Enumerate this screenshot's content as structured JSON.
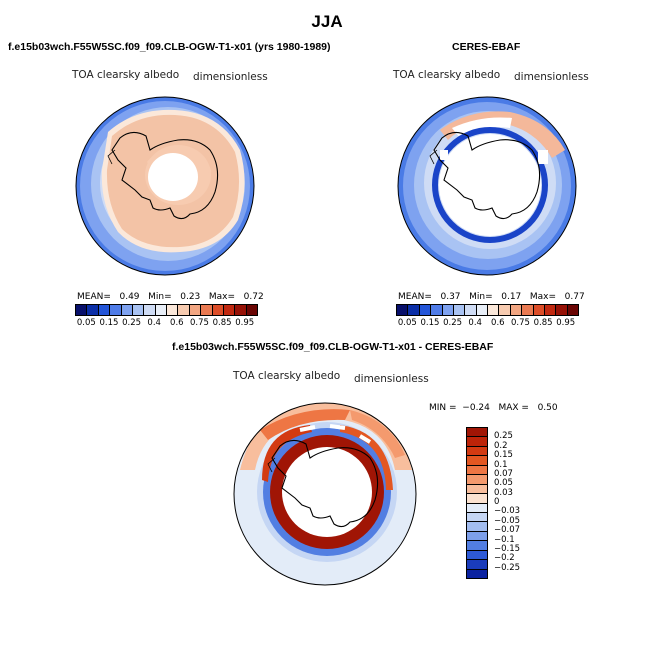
{
  "season": "JJA",
  "panels": [
    {
      "title": "f.e15b03wch.F55W5SC.f09_f09.CLB-OGW-T1-x01 (yrs 1980-1989)",
      "variable": "TOA clearsky albedo",
      "units": "dimensionless",
      "stats": {
        "mean_label": "MEAN=",
        "mean": "0.49",
        "min_label": "Min=",
        "min": "0.23",
        "max_label": "Max=",
        "max": "0.72"
      }
    },
    {
      "title": "CERES-EBAF",
      "variable": "TOA clearsky albedo",
      "units": "dimensionless",
      "stats": {
        "mean_label": "MEAN=",
        "mean": "0.37",
        "min_label": "Min=",
        "min": "0.17",
        "max_label": "Max=",
        "max": "0.77"
      }
    },
    {
      "title": "f.e15b03wch.F55W5SC.f09_f09.CLB-OGW-T1-x01 - CERES-EBAF",
      "variable": "TOA clearsky albedo",
      "units": "dimensionless",
      "stats": {
        "min_label": "MIN =",
        "min": "−0.24",
        "max_label": "MAX =",
        "max": "0.50"
      }
    }
  ],
  "colorbar_abs": {
    "ticks": [
      "0.05",
      "0.15",
      "0.25",
      "0.4",
      "0.6",
      "0.75",
      "0.85",
      "0.95"
    ],
    "colors": [
      "#08106b",
      "#0b2fa8",
      "#2355d8",
      "#4f7ce8",
      "#7ea2f0",
      "#a9c3f3",
      "#cfdcf5",
      "#e8eef7",
      "#fbe8da",
      "#f7cbb0",
      "#f2a682",
      "#ea7a52",
      "#dc4d28",
      "#c02810",
      "#961106",
      "#6a0503"
    ]
  },
  "colorbar_diff": {
    "labels": [
      "0.25",
      "0.2",
      "0.15",
      "0.1",
      "0.07",
      "0.05",
      "0.03",
      "0",
      "−0.03",
      "−0.05",
      "−0.07",
      "−0.1",
      "−0.15",
      "−0.2",
      "−0.25"
    ],
    "colors": [
      "#a01505",
      "#bd2409",
      "#d33a12",
      "#e35722",
      "#ee7644",
      "#f49a6e",
      "#f8be9d",
      "#fbe2d0",
      "#e3ecf8",
      "#c5d6f4",
      "#a3bdf0",
      "#7d9fea",
      "#527ee2",
      "#2e5ad6",
      "#1a3cbb",
      "#0b22a0"
    ]
  }
}
